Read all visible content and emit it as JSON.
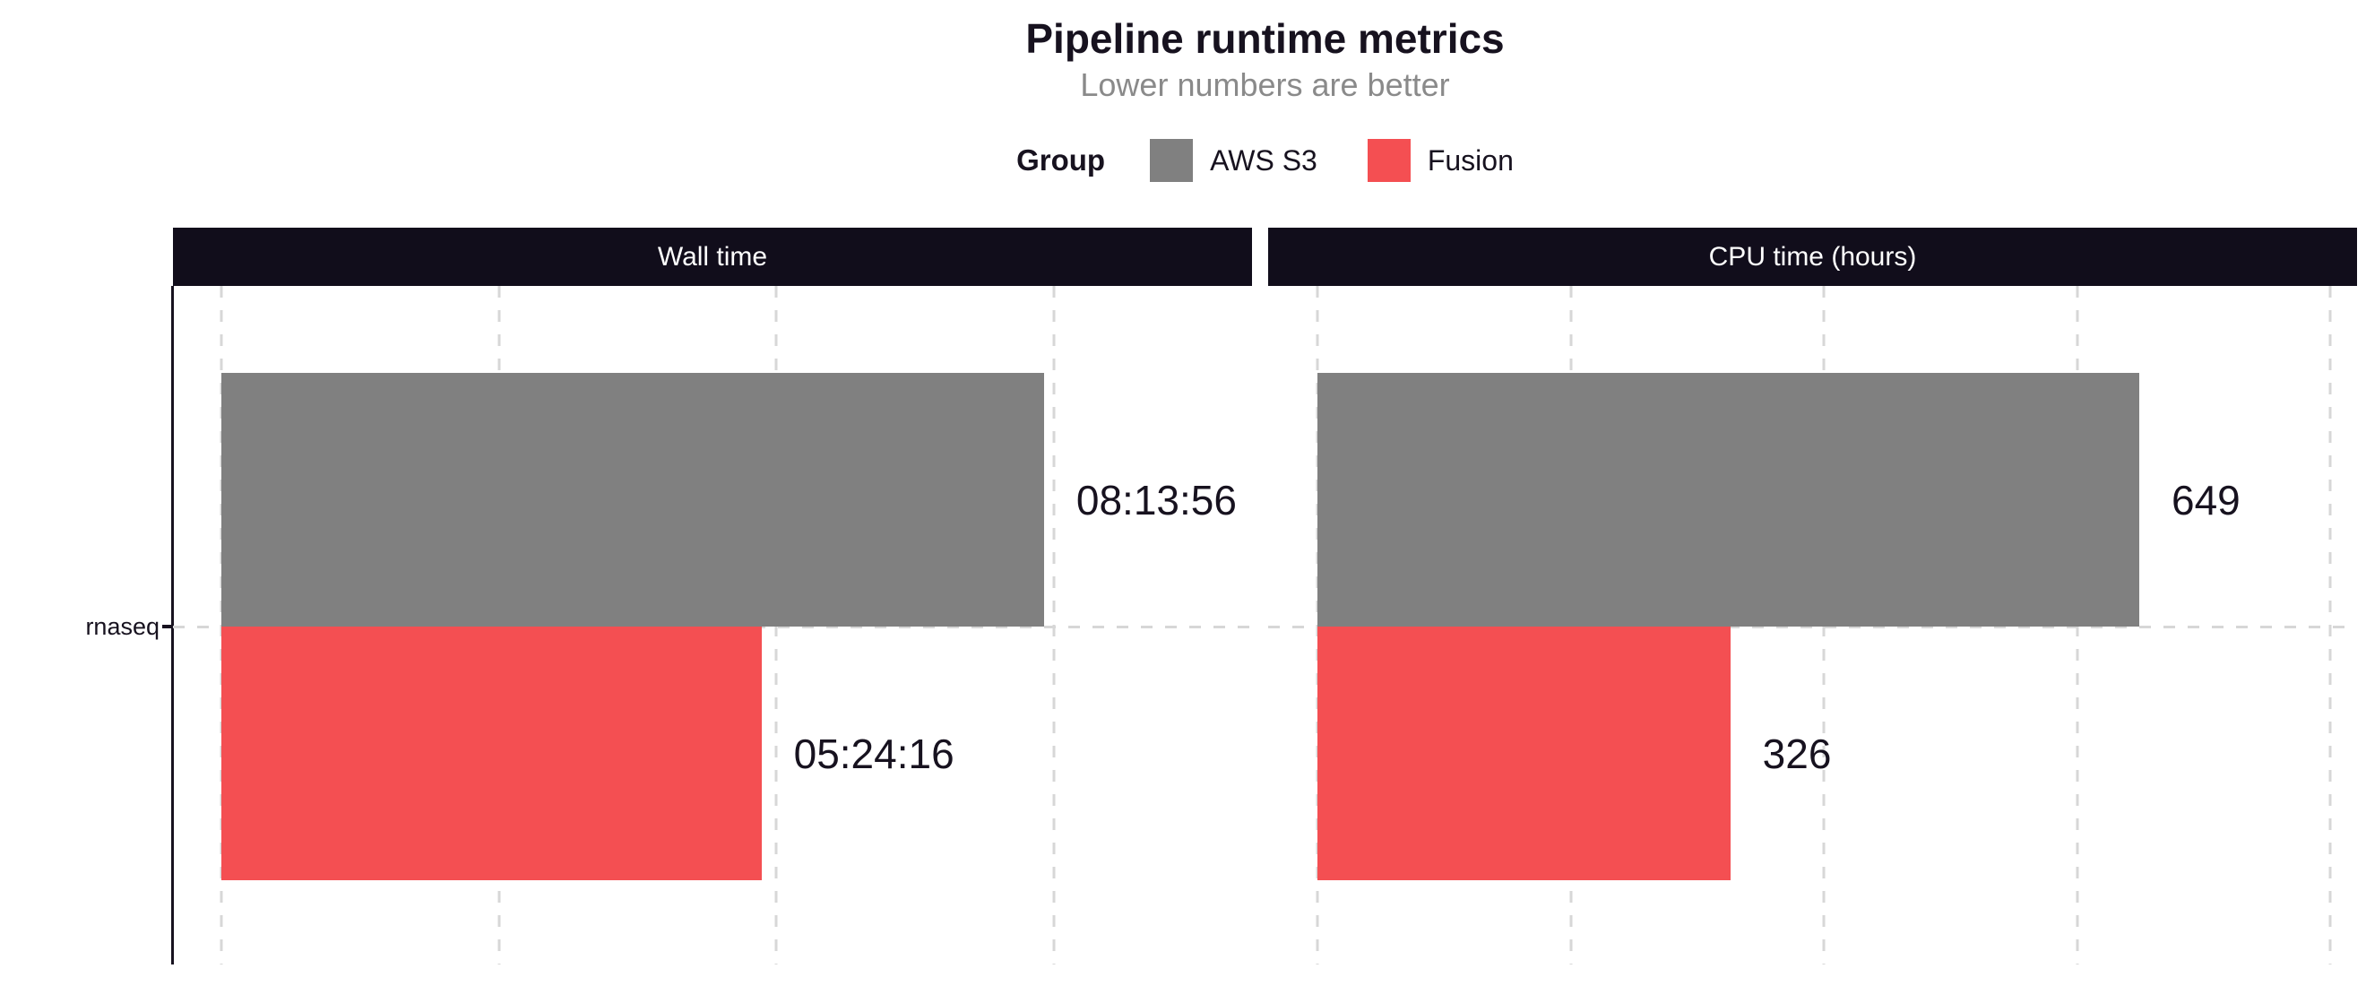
{
  "header": {
    "title": "Pipeline runtime metrics",
    "subtitle": "Lower numbers are better"
  },
  "legend": {
    "title": "Group",
    "items": [
      {
        "name": "AWS S3",
        "color": "#808080"
      },
      {
        "name": "Fusion",
        "color": "#F44F52"
      }
    ]
  },
  "colors": {
    "strip_background": "#110D1B",
    "strip_text": "#FFFFFF",
    "gridline": "#D7D7D7",
    "axis": "#17121F",
    "text_dark": "#17121F",
    "subtitle_gray": "#8A8A8A"
  },
  "chart_data": {
    "type": "bar",
    "orientation": "horizontal",
    "grid": "dashed",
    "legend_position": "top",
    "categories": [
      "rnaseq"
    ],
    "facets": [
      {
        "title": "Wall time",
        "unit": "seconds",
        "axis": {
          "min": -1745,
          "max": 37130,
          "gridlines": [
            0,
            10000,
            20000,
            30000
          ]
        },
        "series": [
          {
            "name": "AWS S3",
            "color": "#808080",
            "values": [
              29636
            ],
            "labels": [
              "08:13:56"
            ]
          },
          {
            "name": "Fusion",
            "color": "#F44F52",
            "values": [
              19456
            ],
            "labels": [
              "05:24:16"
            ]
          }
        ]
      },
      {
        "title": "CPU time (hours)",
        "unit": "hours",
        "axis": {
          "min": -39,
          "max": 821,
          "gridlines": [
            0,
            200,
            400,
            600,
            800
          ]
        },
        "series": [
          {
            "name": "AWS S3",
            "color": "#808080",
            "values": [
              649
            ],
            "labels": [
              "649"
            ]
          },
          {
            "name": "Fusion",
            "color": "#F44F52",
            "values": [
              326
            ],
            "labels": [
              "326"
            ]
          }
        ]
      }
    ]
  }
}
